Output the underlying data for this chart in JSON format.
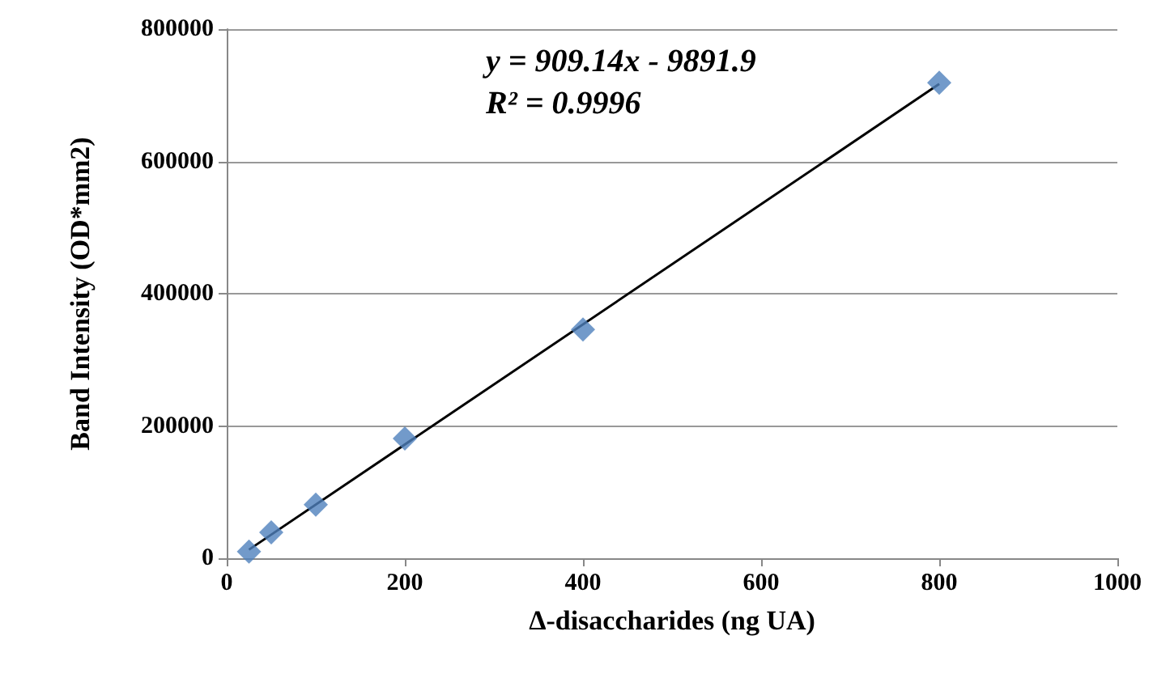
{
  "chart_data": {
    "type": "scatter",
    "xlabel": "Δ-disaccharides (ng UA)",
    "ylabel": "Band Intensity (OD*mm2)",
    "annotations": [
      "y = 909.14x - 9891.9",
      "R² = 0.9996"
    ],
    "series": [
      {
        "type": "scatter",
        "color": "#4f81bd",
        "marker": "diamond",
        "x": [
          25,
          50,
          100,
          200,
          400,
          800
        ],
        "values": [
          10000,
          39000,
          81000,
          181000,
          346000,
          719000
        ]
      },
      {
        "type": "line",
        "color": "#000000",
        "marker": "none",
        "line_style": "solid",
        "x": [
          25,
          800
        ],
        "values": [
          13000,
          717000
        ]
      }
    ],
    "xlim": [
      0,
      1000
    ],
    "xticks": [
      0,
      200,
      400,
      600,
      800,
      1000
    ],
    "ylim": [
      0,
      800000
    ],
    "yticks": [
      0,
      200000,
      400000,
      600000,
      800000
    ],
    "grid": "y"
  }
}
